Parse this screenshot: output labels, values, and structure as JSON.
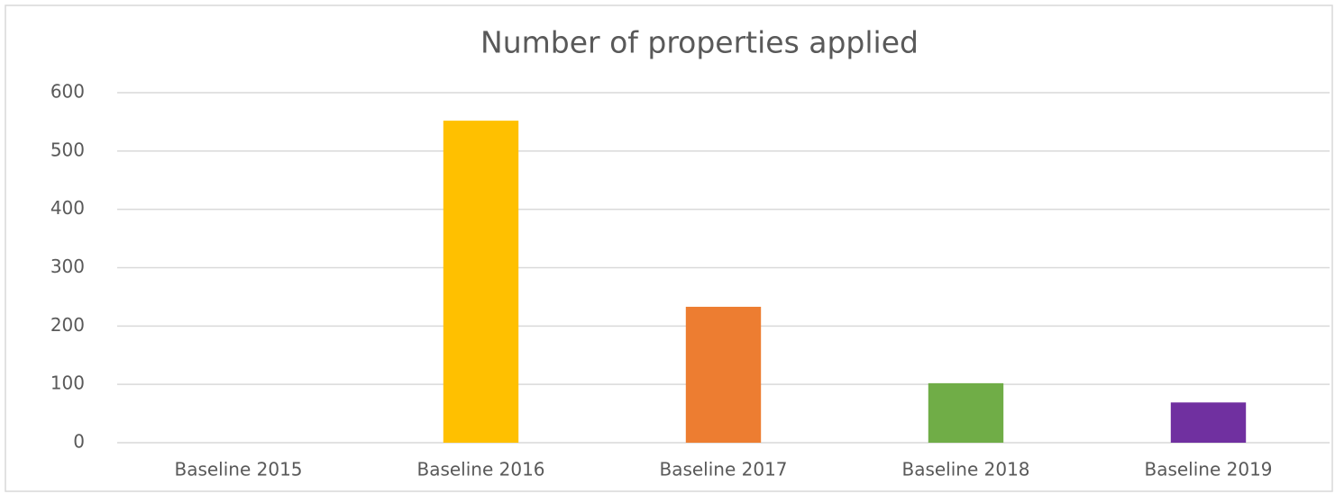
{
  "chart_data": {
    "type": "bar",
    "title": "Number of properties applied",
    "categories": [
      "Baseline 2015",
      "Baseline 2016",
      "Baseline 2017",
      "Baseline 2018",
      "Baseline 2019"
    ],
    "values": [
      0,
      552,
      233,
      102,
      69
    ],
    "colors": [
      "#4472c4",
      "#ffc000",
      "#ed7d31",
      "#70ad47",
      "#7030a0"
    ],
    "ylim": [
      0,
      600
    ],
    "yticks": [
      0,
      100,
      200,
      300,
      400,
      500,
      600
    ],
    "grid": true
  }
}
